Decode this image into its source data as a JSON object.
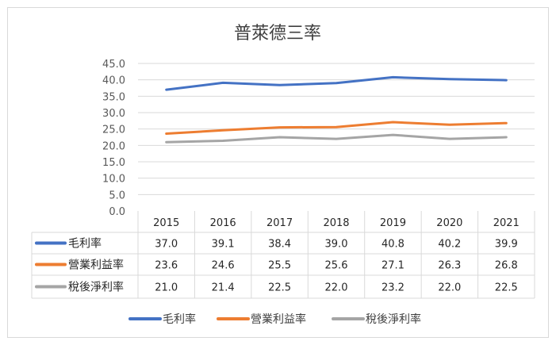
{
  "chart_data": {
    "type": "line",
    "title": "普萊德三率",
    "categories": [
      "2015",
      "2016",
      "2017",
      "2018",
      "2019",
      "2020",
      "2021"
    ],
    "ylim": [
      0,
      45
    ],
    "yticks": [
      "0.0",
      "5.0",
      "10.0",
      "15.0",
      "20.0",
      "25.0",
      "30.0",
      "35.0",
      "40.0",
      "45.0"
    ],
    "grid": true,
    "legend_position": "bottom",
    "data_table": true,
    "series": [
      {
        "name": "毛利率",
        "color": "#4472c4",
        "values": [
          37.0,
          39.1,
          38.4,
          39.0,
          40.8,
          40.2,
          39.9
        ],
        "labels": [
          "37.0",
          "39.1",
          "38.4",
          "39.0",
          "40.8",
          "40.2",
          "39.9"
        ]
      },
      {
        "name": "營業利益率",
        "color": "#ed7d31",
        "values": [
          23.6,
          24.6,
          25.5,
          25.6,
          27.1,
          26.3,
          26.8
        ],
        "labels": [
          "23.6",
          "24.6",
          "25.5",
          "25.6",
          "27.1",
          "26.3",
          "26.8"
        ]
      },
      {
        "name": "稅後淨利率",
        "color": "#a5a5a5",
        "values": [
          21.0,
          21.4,
          22.5,
          22.0,
          23.2,
          22.0,
          22.5
        ],
        "labels": [
          "21.0",
          "21.4",
          "22.5",
          "22.0",
          "23.2",
          "22.0",
          "22.5"
        ]
      }
    ]
  }
}
